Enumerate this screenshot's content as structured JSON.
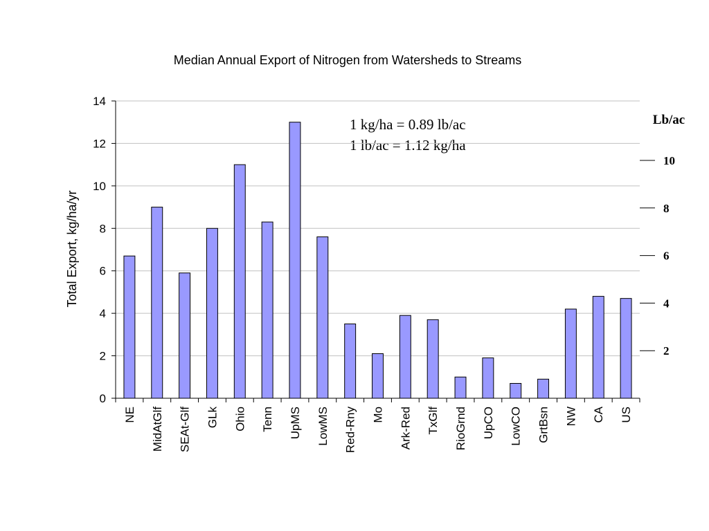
{
  "colors": {
    "bar_fill": "#9999ff",
    "bar_stroke": "#000000",
    "grid": "#c0c0c0",
    "axis": "#000000"
  },
  "annotations": {
    "line1": "1 kg/ha = 0.89 lb/ac",
    "line2": "1 lb/ac = 1.12 kg/ha"
  },
  "chart_data": {
    "type": "bar",
    "title": "Median Annual Export of Nitrogen from Watersheds to Streams",
    "xlabel": "",
    "ylabel": "Total Export, kg/ha/yr",
    "ylim": [
      0,
      14
    ],
    "yticks": [
      "0",
      "2",
      "4",
      "6",
      "8",
      "10",
      "12",
      "14"
    ],
    "grid": true,
    "categories": [
      "NE",
      "MidAtGlf",
      "SEAt-Glf",
      "GLk",
      "Ohio",
      "Tenn",
      "UpMS",
      "LowMS",
      "Red-Rny",
      "Mo",
      "Ark-Red",
      "TxGlf",
      "RioGrnd",
      "UpCO",
      "LowCO",
      "GrtBsn",
      "NW",
      "CA",
      "US"
    ],
    "values": [
      6.7,
      9.0,
      5.9,
      8.0,
      11.0,
      8.3,
      13.0,
      7.6,
      3.5,
      2.1,
      3.9,
      3.7,
      1.0,
      1.9,
      0.7,
      0.9,
      4.2,
      4.8,
      4.7
    ],
    "secondary_axis": {
      "label": "Lb/ac",
      "ticks": [
        2,
        4,
        6,
        8,
        10
      ],
      "tick_labels": [
        "2",
        "4",
        "6",
        "8",
        "10"
      ],
      "factor_kg_ha_per_lb_ac": 1.12
    }
  }
}
